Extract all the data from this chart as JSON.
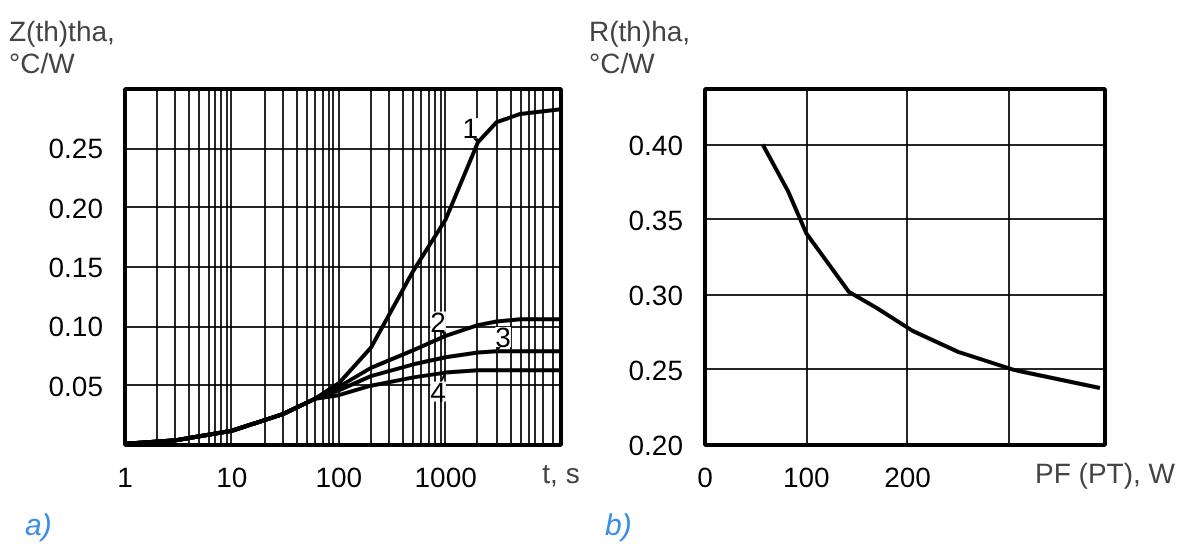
{
  "chart_data": [
    {
      "type": "line",
      "ylabel": "Z(th)tha,\n°C/W",
      "xlabel": "t, s",
      "annotations": [
        "a)"
      ],
      "log": "x",
      "grid": true,
      "legend": "right",
      "x": [
        1,
        3,
        10,
        30,
        60,
        100,
        200,
        500,
        1000,
        2000,
        3000,
        5000,
        12000
      ],
      "xlim": [
        1,
        12000
      ],
      "ylim": [
        0,
        0.3
      ],
      "xticks": [
        1,
        {
          "value": 2,
          "label": null
        },
        {
          "value": 3,
          "label": null
        },
        {
          "value": 4,
          "label": null
        },
        {
          "value": 5,
          "label": null
        },
        {
          "value": 6,
          "label": null
        },
        {
          "value": 7,
          "label": null
        },
        {
          "value": 8,
          "label": null
        },
        {
          "value": 9,
          "label": null
        },
        10,
        {
          "value": 20,
          "label": null
        },
        {
          "value": 30,
          "label": null
        },
        {
          "value": 40,
          "label": null
        },
        {
          "value": 50,
          "label": null
        },
        {
          "value": 60,
          "label": null
        },
        {
          "value": 70,
          "label": null
        },
        {
          "value": 80,
          "label": null
        },
        {
          "value": 90,
          "label": null
        },
        100,
        {
          "value": 200,
          "label": null
        },
        {
          "value": 300,
          "label": null
        },
        {
          "value": 400,
          "label": null
        },
        {
          "value": 500,
          "label": null
        },
        {
          "value": 600,
          "label": null
        },
        {
          "value": 700,
          "label": null
        },
        {
          "value": 800,
          "label": null
        },
        {
          "value": 900,
          "label": null
        },
        1000,
        {
          "value": 2000,
          "label": null
        },
        {
          "value": 3000,
          "label": null
        },
        {
          "value": 4000,
          "label": null
        },
        {
          "value": 5000,
          "label": null
        },
        {
          "value": 6000,
          "label": null
        },
        {
          "value": 7000,
          "label": null
        },
        {
          "value": 8000,
          "label": null
        },
        {
          "value": 10000,
          "label": null
        }
      ],
      "yticks": [
        0.05,
        {
          "value": 0.1,
          "label": "0.10"
        },
        0.15,
        {
          "value": 0.2,
          "label": "0.20"
        },
        0.25
      ],
      "series": [
        {
          "name": "1",
          "color": "#000000",
          "values": [
            0.001,
            0.004,
            0.012,
            0.026,
            0.039,
            0.052,
            0.082,
            0.147,
            0.19,
            0.255,
            0.272,
            0.279,
            0.283
          ]
        },
        {
          "name": "2",
          "color": "#000000",
          "values": [
            0.001,
            0.004,
            0.012,
            0.026,
            0.039,
            0.049,
            0.065,
            0.08,
            0.092,
            0.101,
            0.104,
            0.106,
            0.106
          ]
        },
        {
          "name": "3",
          "color": "#000000",
          "values": [
            0.001,
            0.004,
            0.012,
            0.026,
            0.039,
            0.046,
            0.058,
            0.068,
            0.074,
            0.078,
            0.079,
            0.079,
            0.079
          ]
        },
        {
          "name": "4",
          "color": "#000000",
          "values": [
            0.001,
            0.004,
            0.012,
            0.026,
            0.039,
            0.042,
            0.05,
            0.057,
            0.061,
            0.063,
            0.063,
            0.063,
            0.063
          ]
        }
      ]
    },
    {
      "type": "line",
      "ylabel": "R(th)ha,\n°C/W",
      "xlabel": "PF (PT), W",
      "annotations": [
        "b)"
      ],
      "grid": true,
      "x": [
        57,
        82,
        100,
        142,
        170,
        205,
        250,
        305,
        390
      ],
      "xlim": [
        0,
        395
      ],
      "ylim": [
        0.2,
        0.437
      ],
      "xticks": [
        0,
        100,
        200,
        {
          "value": 300,
          "label": null
        }
      ],
      "yticks": [
        {
          "value": 0.2,
          "label": "0.20"
        },
        0.25,
        {
          "value": 0.3,
          "label": "0.30"
        },
        0.35,
        {
          "value": 0.4,
          "label": "0.40"
        }
      ],
      "series": [
        {
          "color": "#000000",
          "values": [
            0.4,
            0.369,
            0.341,
            0.302,
            0.291,
            0.276,
            0.262,
            0.25,
            0.238
          ]
        }
      ]
    }
  ]
}
